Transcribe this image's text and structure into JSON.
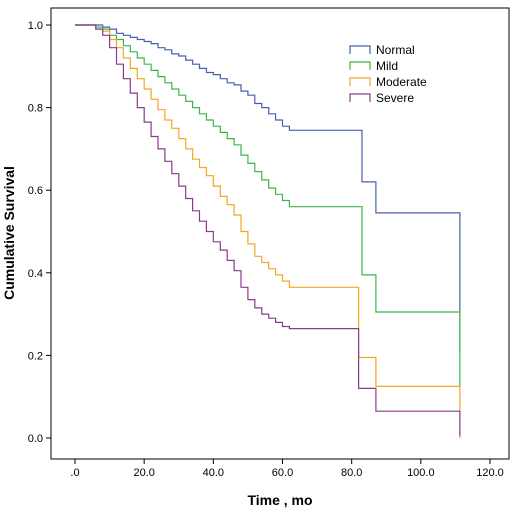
{
  "chart_data": {
    "type": "line",
    "title": "",
    "xlabel": "Time , mo",
    "ylabel": "Cumulative Survival",
    "xlim": [
      -8,
      124
    ],
    "ylim": [
      -0.05,
      1.05
    ],
    "xticks": [
      0,
      20,
      40,
      60,
      80,
      100,
      120
    ],
    "xtick_labels": [
      ".0",
      "20.0",
      "40.0",
      "60.0",
      "80.0",
      "100.0",
      "120.0"
    ],
    "yticks": [
      0,
      0.2,
      0.4,
      0.6,
      0.8,
      1.0
    ],
    "ytick_labels": [
      "0.0",
      "0.2",
      "0.4",
      "0.6",
      "0.8",
      "1.0"
    ],
    "grid": false,
    "legend_position": "top-right",
    "step": true,
    "series": [
      {
        "name": "Normal",
        "color": "#4a5fae",
        "points": [
          [
            0,
            1.0
          ],
          [
            8,
            0.995
          ],
          [
            10,
            0.99
          ],
          [
            12,
            0.98
          ],
          [
            14,
            0.975
          ],
          [
            16,
            0.97
          ],
          [
            18,
            0.965
          ],
          [
            20,
            0.96
          ],
          [
            22,
            0.955
          ],
          [
            24,
            0.945
          ],
          [
            26,
            0.94
          ],
          [
            28,
            0.93
          ],
          [
            30,
            0.925
          ],
          [
            32,
            0.915
          ],
          [
            34,
            0.905
          ],
          [
            36,
            0.895
          ],
          [
            38,
            0.885
          ],
          [
            40,
            0.88
          ],
          [
            42,
            0.87
          ],
          [
            44,
            0.86
          ],
          [
            46,
            0.855
          ],
          [
            48,
            0.84
          ],
          [
            50,
            0.83
          ],
          [
            52,
            0.81
          ],
          [
            54,
            0.8
          ],
          [
            56,
            0.785
          ],
          [
            58,
            0.77
          ],
          [
            60,
            0.755
          ],
          [
            62,
            0.745
          ],
          [
            81,
            0.745
          ],
          [
            83,
            0.62
          ],
          [
            87,
            0.545
          ],
          [
            111,
            0.545
          ],
          [
            111.3,
            0.21
          ]
        ]
      },
      {
        "name": "Mild",
        "color": "#3db54a",
        "points": [
          [
            0,
            1.0
          ],
          [
            6,
            0.995
          ],
          [
            8,
            0.99
          ],
          [
            10,
            0.975
          ],
          [
            12,
            0.965
          ],
          [
            14,
            0.95
          ],
          [
            16,
            0.935
          ],
          [
            18,
            0.92
          ],
          [
            20,
            0.905
          ],
          [
            22,
            0.89
          ],
          [
            24,
            0.875
          ],
          [
            26,
            0.86
          ],
          [
            28,
            0.845
          ],
          [
            30,
            0.83
          ],
          [
            32,
            0.815
          ],
          [
            34,
            0.8
          ],
          [
            36,
            0.785
          ],
          [
            38,
            0.77
          ],
          [
            40,
            0.755
          ],
          [
            42,
            0.74
          ],
          [
            44,
            0.725
          ],
          [
            46,
            0.71
          ],
          [
            48,
            0.685
          ],
          [
            50,
            0.665
          ],
          [
            52,
            0.645
          ],
          [
            54,
            0.625
          ],
          [
            56,
            0.605
          ],
          [
            58,
            0.59
          ],
          [
            60,
            0.575
          ],
          [
            62,
            0.56
          ],
          [
            81,
            0.56
          ],
          [
            83,
            0.395
          ],
          [
            87,
            0.305
          ],
          [
            111,
            0.305
          ],
          [
            111.3,
            0.12
          ]
        ]
      },
      {
        "name": "Moderate",
        "color": "#f5a623",
        "points": [
          [
            0,
            1.0
          ],
          [
            6,
            0.99
          ],
          [
            8,
            0.985
          ],
          [
            10,
            0.965
          ],
          [
            12,
            0.945
          ],
          [
            14,
            0.92
          ],
          [
            16,
            0.895
          ],
          [
            18,
            0.87
          ],
          [
            20,
            0.845
          ],
          [
            22,
            0.82
          ],
          [
            24,
            0.795
          ],
          [
            26,
            0.77
          ],
          [
            28,
            0.75
          ],
          [
            30,
            0.725
          ],
          [
            32,
            0.7
          ],
          [
            34,
            0.675
          ],
          [
            36,
            0.655
          ],
          [
            38,
            0.635
          ],
          [
            40,
            0.61
          ],
          [
            42,
            0.585
          ],
          [
            44,
            0.565
          ],
          [
            46,
            0.54
          ],
          [
            48,
            0.5
          ],
          [
            50,
            0.47
          ],
          [
            52,
            0.44
          ],
          [
            54,
            0.425
          ],
          [
            56,
            0.41
          ],
          [
            58,
            0.395
          ],
          [
            60,
            0.38
          ],
          [
            62,
            0.365
          ],
          [
            81,
            0.365
          ],
          [
            82,
            0.195
          ],
          [
            87,
            0.125
          ],
          [
            111,
            0.125
          ],
          [
            111.3,
            0.0
          ]
        ]
      },
      {
        "name": "Severe",
        "color": "#8b3a8f",
        "points": [
          [
            0,
            1.0
          ],
          [
            6,
            0.99
          ],
          [
            8,
            0.975
          ],
          [
            10,
            0.945
          ],
          [
            12,
            0.905
          ],
          [
            14,
            0.87
          ],
          [
            16,
            0.835
          ],
          [
            18,
            0.8
          ],
          [
            20,
            0.765
          ],
          [
            22,
            0.73
          ],
          [
            24,
            0.7
          ],
          [
            26,
            0.67
          ],
          [
            28,
            0.64
          ],
          [
            30,
            0.61
          ],
          [
            32,
            0.58
          ],
          [
            34,
            0.55
          ],
          [
            36,
            0.525
          ],
          [
            38,
            0.5
          ],
          [
            40,
            0.475
          ],
          [
            42,
            0.455
          ],
          [
            44,
            0.43
          ],
          [
            46,
            0.405
          ],
          [
            48,
            0.365
          ],
          [
            50,
            0.335
          ],
          [
            52,
            0.315
          ],
          [
            54,
            0.3
          ],
          [
            56,
            0.29
          ],
          [
            58,
            0.28
          ],
          [
            60,
            0.27
          ],
          [
            62,
            0.265
          ],
          [
            81,
            0.265
          ],
          [
            82,
            0.12
          ],
          [
            87,
            0.065
          ],
          [
            111,
            0.065
          ],
          [
            111.3,
            0.005
          ]
        ]
      }
    ]
  }
}
